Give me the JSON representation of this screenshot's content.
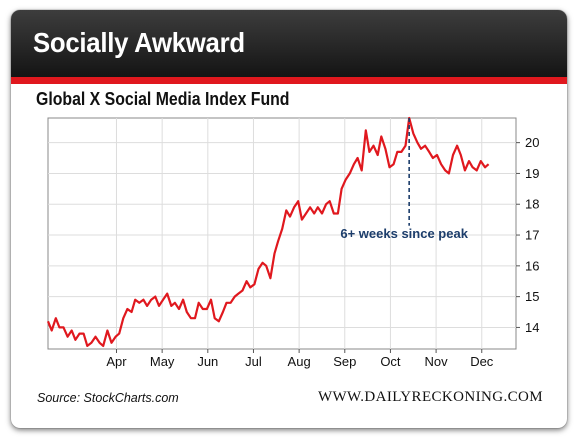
{
  "banner": {
    "title": "Socially Awkward"
  },
  "source": "Source: StockCharts.com",
  "site": "WWW.DAILYRECKONING.COM",
  "colors": {
    "line": "#e0181e",
    "banner": "#1e1e1e",
    "accent": "#e0181e",
    "annotation": "#1c3d6b",
    "grid": "#dddddd"
  },
  "chart_data": {
    "type": "line",
    "title": "Global X Social Media Index Fund",
    "x_axis": "time (2014, approx. mid-March to mid-December)",
    "y_axis_position": "right",
    "ylim": [
      13.3,
      20.8
    ],
    "y_ticks": [
      14,
      15,
      16,
      17,
      18,
      19,
      20
    ],
    "x_ticks": [
      {
        "label": "Apr",
        "x": 1.0
      },
      {
        "label": "May",
        "x": 2.0
      },
      {
        "label": "Jun",
        "x": 3.0
      },
      {
        "label": "Jul",
        "x": 4.0
      },
      {
        "label": "Aug",
        "x": 5.0
      },
      {
        "label": "Sep",
        "x": 6.0
      },
      {
        "label": "Oct",
        "x": 7.0
      },
      {
        "label": "Nov",
        "x": 8.0
      },
      {
        "label": "Dec",
        "x": 9.0
      }
    ],
    "xlim": [
      -0.5,
      9.75
    ],
    "grid": true,
    "series": [
      {
        "x": [
          -0.5,
          -0.42,
          -0.33,
          -0.25,
          -0.16,
          -0.07,
          0.02,
          0.1,
          0.19,
          0.28,
          0.36,
          0.45,
          0.54,
          0.63,
          0.71,
          0.8,
          0.89,
          0.98,
          1.06,
          1.15,
          1.24,
          1.33,
          1.41,
          1.5,
          1.59,
          1.67,
          1.76,
          1.85,
          1.93,
          2.02,
          2.11,
          2.2,
          2.28,
          2.37,
          2.46,
          2.54,
          2.63,
          2.72,
          2.8,
          2.89,
          2.98,
          3.07,
          3.15,
          3.24,
          3.33,
          3.41,
          3.5,
          3.59,
          3.67,
          3.76,
          3.85,
          3.93,
          4.02,
          4.11,
          4.2,
          4.28,
          4.37,
          4.46,
          4.54,
          4.63,
          4.72,
          4.8,
          4.89,
          4.98,
          5.06,
          5.15,
          5.24,
          5.33,
          5.41,
          5.5,
          5.59,
          5.67,
          5.76,
          5.85,
          5.93,
          6.02,
          6.11,
          6.2,
          6.28,
          6.37,
          6.46,
          6.54,
          6.63,
          6.72,
          6.8,
          6.89,
          6.98,
          7.07,
          7.15,
          7.24,
          7.33,
          7.41,
          7.5,
          7.59,
          7.67,
          7.76,
          7.85,
          7.93,
          8.02,
          8.11,
          8.2,
          8.28,
          8.37,
          8.46,
          8.54,
          8.63,
          8.72,
          8.8,
          8.89,
          8.98,
          9.07,
          9.15
        ],
        "y": [
          14.2,
          13.9,
          14.3,
          14.0,
          14.0,
          13.7,
          13.9,
          13.6,
          13.8,
          13.8,
          13.4,
          13.5,
          13.7,
          13.5,
          13.4,
          13.9,
          13.5,
          13.7,
          13.8,
          14.3,
          14.6,
          14.5,
          14.9,
          14.8,
          14.9,
          14.7,
          14.9,
          15.0,
          14.7,
          14.9,
          15.1,
          14.7,
          14.8,
          14.6,
          14.9,
          14.5,
          14.3,
          14.3,
          14.8,
          14.6,
          14.6,
          14.9,
          14.3,
          14.2,
          14.5,
          14.8,
          14.8,
          15.0,
          15.1,
          15.2,
          15.5,
          15.3,
          15.4,
          15.9,
          16.1,
          16.0,
          15.6,
          16.4,
          16.8,
          17.2,
          17.8,
          17.6,
          17.9,
          18.1,
          17.5,
          17.7,
          17.9,
          17.7,
          17.9,
          17.7,
          18.0,
          18.1,
          17.7,
          17.7,
          18.5,
          18.8,
          19.0,
          19.3,
          19.5,
          19.1,
          20.4,
          19.7,
          19.9,
          19.6,
          20.2,
          19.8,
          19.2,
          19.3,
          19.7,
          19.7,
          19.9,
          20.8,
          20.3,
          20.0,
          19.8,
          19.9,
          19.7,
          19.5,
          19.6,
          19.3,
          19.1,
          19.0,
          19.6,
          19.9,
          19.6,
          19.1,
          19.4,
          19.2,
          19.1,
          19.4,
          19.2,
          19.3
        ]
      }
    ],
    "annotations": [
      {
        "text": "6+ weeks since peak",
        "x": 7.41,
        "y_from": 20.8,
        "y_to": 17.3
      }
    ]
  }
}
